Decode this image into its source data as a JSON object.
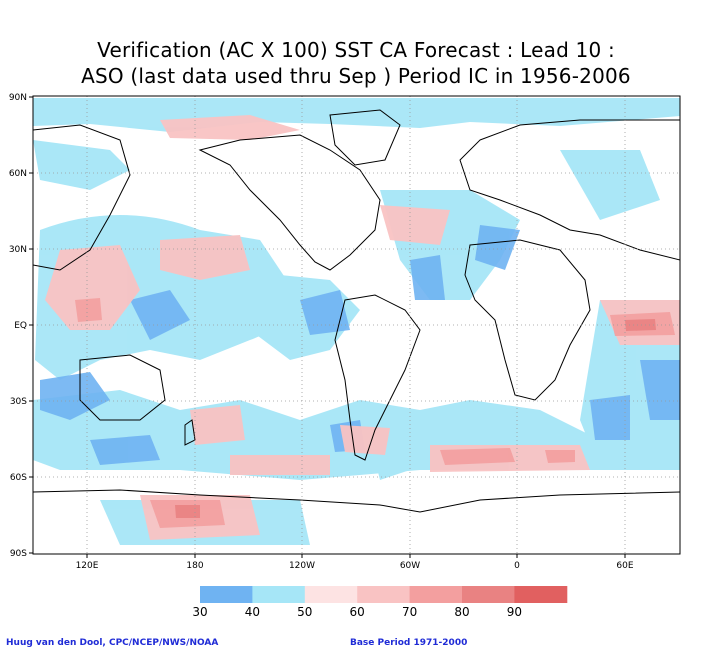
{
  "title_line1": "Verification (AC X 100) SST CA Forecast : Lead 10 :",
  "title_line2": "ASO (last data used thru Sep ) Period IC in 1956-2006",
  "lat_labels": [
    "90N",
    "60N",
    "30N",
    "EQ",
    "30S",
    "60S",
    "90S"
  ],
  "lon_labels": [
    "120E",
    "180",
    "120W",
    "60W",
    "0",
    "60E"
  ],
  "colorbar": {
    "ticks": [
      "30",
      "40",
      "50",
      "60",
      "70",
      "80",
      "90"
    ],
    "colors": [
      "#6fb3f2",
      "#a6e6f7",
      "#fde3e3",
      "#f9c3c3",
      "#f39f9f",
      "#e98282",
      "#e16060"
    ]
  },
  "footer": {
    "credit": "Huug van den Dool, CPC/NCEP/NWS/NOAA",
    "base_period": "Base Period 1971-2000"
  }
}
